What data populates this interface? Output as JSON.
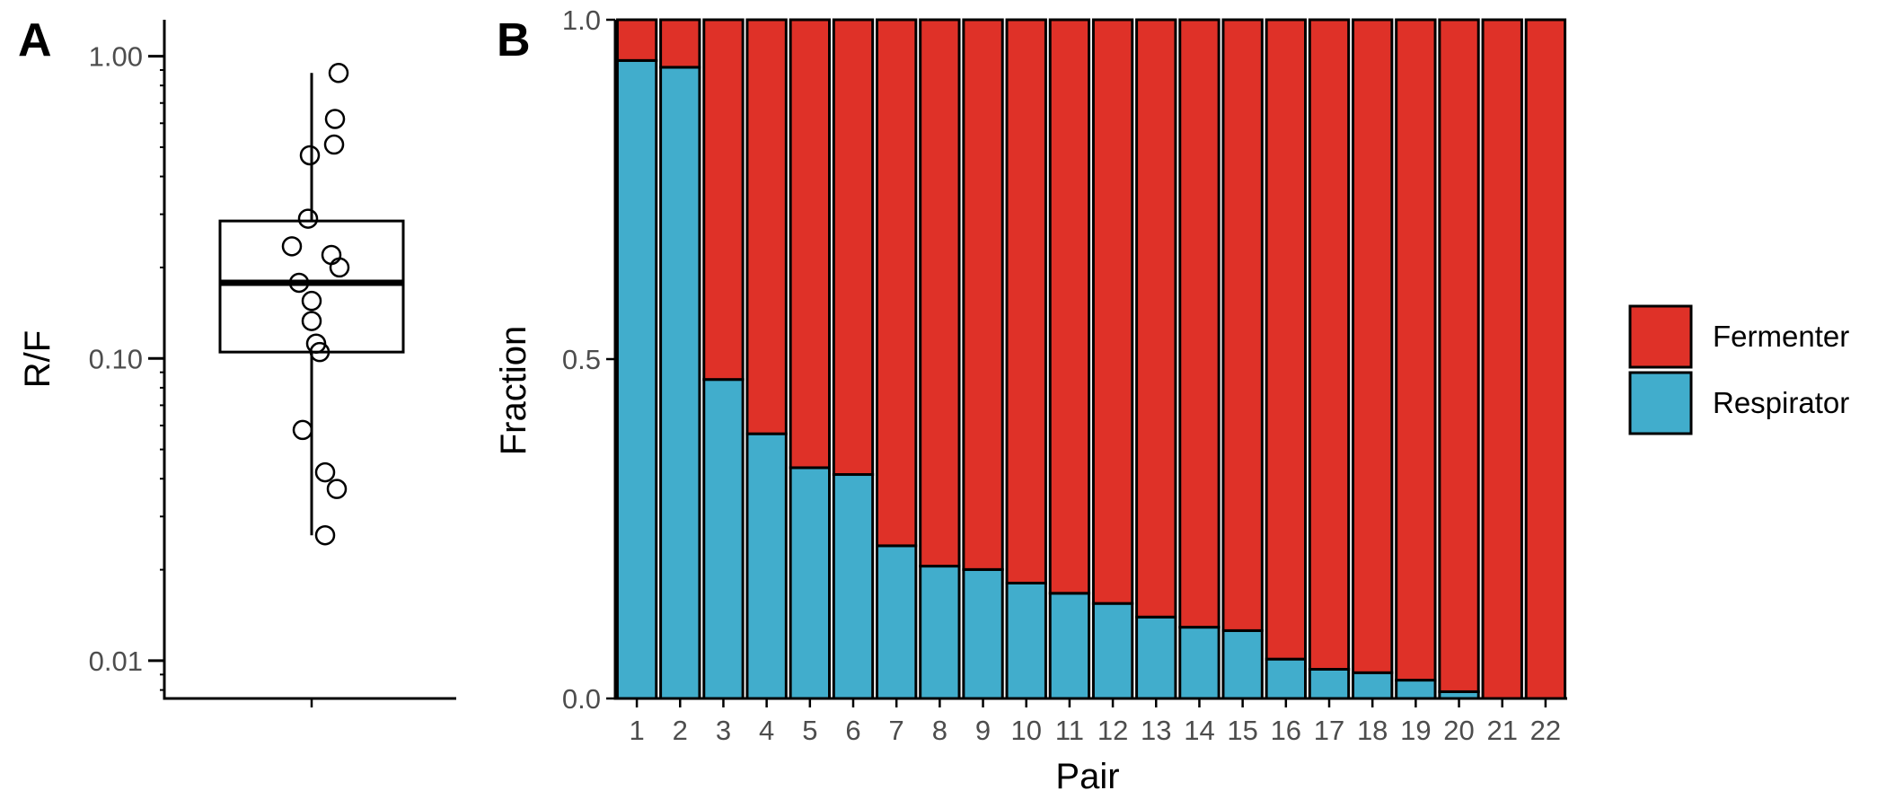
{
  "chart_data": [
    {
      "panel": "A",
      "type": "box",
      "ylabel": "R/F",
      "yscale": "log",
      "ylim": [
        0.0075,
        1.32
      ],
      "yticks": [
        {
          "value": 1.0,
          "label": "1.00"
        },
        {
          "value": 0.1,
          "label": "0.10"
        },
        {
          "value": 0.01,
          "label": "0.01"
        }
      ],
      "box": {
        "whisker_low": 0.026,
        "q1": 0.105,
        "median": 0.178,
        "q3": 0.285,
        "whisker_high": 0.88
      },
      "points": [
        {
          "jitter": 0.3,
          "value": 0.88
        },
        {
          "jitter": 0.26,
          "value": 0.62
        },
        {
          "jitter": 0.25,
          "value": 0.51
        },
        {
          "jitter": -0.02,
          "value": 0.47
        },
        {
          "jitter": -0.04,
          "value": 0.29
        },
        {
          "jitter": -0.22,
          "value": 0.235
        },
        {
          "jitter": 0.22,
          "value": 0.22
        },
        {
          "jitter": 0.31,
          "value": 0.2
        },
        {
          "jitter": -0.14,
          "value": 0.178
        },
        {
          "jitter": 0.0,
          "value": 0.155
        },
        {
          "jitter": 0.0,
          "value": 0.133
        },
        {
          "jitter": 0.05,
          "value": 0.112
        },
        {
          "jitter": 0.09,
          "value": 0.105
        },
        {
          "jitter": -0.1,
          "value": 0.058
        },
        {
          "jitter": 0.15,
          "value": 0.042
        },
        {
          "jitter": 0.28,
          "value": 0.037
        },
        {
          "jitter": 0.15,
          "value": 0.026
        }
      ]
    },
    {
      "panel": "B",
      "type": "bar",
      "stacked": true,
      "xlabel": "Pair",
      "ylabel": "Fraction",
      "ylim": [
        0,
        1
      ],
      "yticks": [
        {
          "value": 0.0,
          "label": "0.0"
        },
        {
          "value": 0.5,
          "label": "0.5"
        },
        {
          "value": 1.0,
          "label": "1.0"
        }
      ],
      "categories": [
        "1",
        "2",
        "3",
        "4",
        "5",
        "6",
        "7",
        "8",
        "9",
        "10",
        "11",
        "12",
        "13",
        "14",
        "15",
        "16",
        "17",
        "18",
        "19",
        "20",
        "21",
        "22"
      ],
      "series": [
        {
          "name": "Respirator",
          "color": "#41adcc",
          "values": [
            0.94,
            0.93,
            0.47,
            0.39,
            0.34,
            0.33,
            0.225,
            0.195,
            0.19,
            0.17,
            0.155,
            0.14,
            0.12,
            0.105,
            0.1,
            0.058,
            0.043,
            0.038,
            0.027,
            0.01,
            0.0,
            0.0
          ]
        },
        {
          "name": "Fermenter",
          "color": "#df3128",
          "values": [
            0.06,
            0.07,
            0.53,
            0.61,
            0.66,
            0.67,
            0.775,
            0.805,
            0.81,
            0.83,
            0.845,
            0.86,
            0.88,
            0.895,
            0.9,
            0.942,
            0.957,
            0.962,
            0.973,
            0.99,
            1.0,
            1.0
          ]
        }
      ],
      "legend": {
        "position": "right",
        "order": [
          "Fermenter",
          "Respirator"
        ]
      }
    }
  ]
}
